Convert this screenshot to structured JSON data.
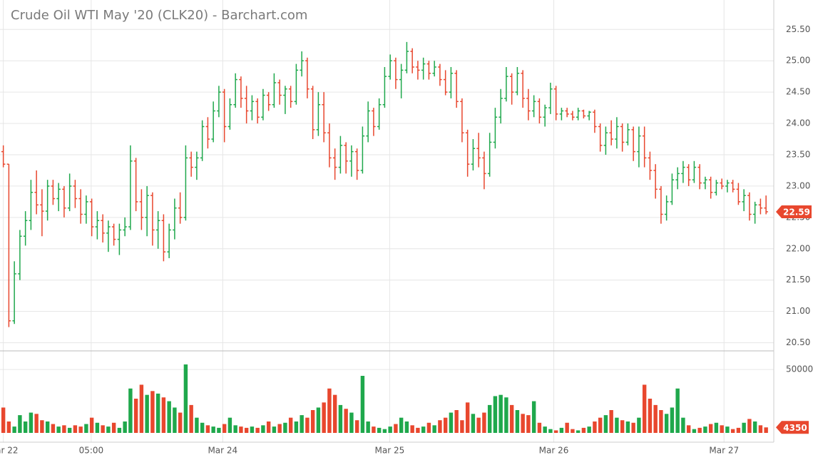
{
  "chart_data": {
    "type": "ohlc",
    "title": "Crude Oil WTI May '20 (CLK20) - Barchart.com",
    "up_color": "#1fa84c",
    "down_color": "#e8472e",
    "xlim": [
      -0.6,
      139.4
    ],
    "xticks": [
      {
        "value": 0,
        "label": "Mar 22"
      },
      {
        "value": 15.9,
        "label": "05:00"
      },
      {
        "value": 39.7,
        "label": "Mar 24"
      },
      {
        "value": 69.9,
        "label": "Mar 25"
      },
      {
        "value": 99.6,
        "label": "Mar 26"
      },
      {
        "value": 130.4,
        "label": "Mar 27"
      }
    ],
    "ylim": [
      20.37,
      25.97
    ],
    "yticks": [
      {
        "value": 20.5,
        "label": "20.50"
      },
      {
        "value": 21,
        "label": "21.00"
      },
      {
        "value": 21.5,
        "label": "21.50"
      },
      {
        "value": 22,
        "label": "22.00"
      },
      {
        "value": 22.5,
        "label": "22.50"
      },
      {
        "value": 23,
        "label": "23.00"
      },
      {
        "value": 23.5,
        "label": "23.50"
      },
      {
        "value": 24,
        "label": "24.00"
      },
      {
        "value": 24.5,
        "label": "24.50"
      },
      {
        "value": 25,
        "label": "25.00"
      },
      {
        "value": 25.5,
        "label": "25.50"
      }
    ],
    "volume_ylim": [
      0,
      63000
    ],
    "volume_yticks": [
      50000
    ],
    "grid": true,
    "open": [
      23.55,
      23.35,
      20.85,
      21.6,
      22.2,
      22.45,
      22.9,
      22.7,
      22.6,
      23.0,
      22.8,
      22.95,
      22.65,
      23.0,
      22.8,
      22.55,
      22.75,
      22.35,
      22.45,
      22.25,
      22.35,
      22.15,
      22.3,
      22.35,
      23.4,
      22.75,
      22.5,
      22.85,
      22.3,
      22.45,
      21.95,
      22.3,
      22.65,
      22.5,
      23.45,
      23.3,
      23.45,
      23.95,
      23.75,
      24.2,
      24.5,
      23.95,
      24.3,
      24.7,
      24.4,
      24.2,
      24.35,
      24.1,
      24.45,
      24.3,
      24.65,
      24.45,
      24.55,
      24.35,
      24.85,
      25.0,
      24.55,
      23.9,
      24.3,
      23.85,
      23.45,
      23.3,
      23.65,
      23.4,
      23.55,
      23.25,
      23.8,
      24.2,
      23.95,
      24.3,
      24.75,
      25.0,
      24.7,
      24.85,
      25.15,
      24.9,
      24.85,
      24.95,
      24.8,
      24.9,
      24.7,
      24.5,
      24.8,
      24.35,
      23.85,
      23.35,
      23.6,
      23.45,
      23.2,
      23.7,
      24.1,
      24.4,
      24.75,
      24.5,
      24.8,
      24.4,
      24.2,
      24.35,
      24.1,
      24.25,
      24.55,
      24.15,
      24.2,
      24.15,
      24.1,
      24.2,
      24.12,
      24.18,
      23.95,
      23.65,
      23.85,
      23.75,
      23.95,
      23.7,
      23.9,
      23.55,
      23.8,
      23.45,
      23.25,
      22.95,
      22.55,
      22.75,
      23.1,
      23.2,
      23.3,
      23.1,
      23.3,
      23.05,
      23.1,
      22.9,
      23.05,
      23.0,
      23.05,
      22.95,
      22.75,
      22.85,
      22.55,
      22.7,
      22.65
    ],
    "high": [
      23.65,
      23.35,
      21.8,
      22.3,
      22.6,
      23.1,
      23.25,
      22.95,
      23.1,
      23.1,
      23.05,
      23.0,
      23.2,
      23.1,
      22.95,
      22.85,
      22.8,
      22.6,
      22.55,
      22.45,
      22.4,
      22.4,
      22.5,
      23.65,
      23.45,
      22.95,
      23.0,
      22.9,
      22.6,
      22.55,
      22.4,
      22.8,
      22.9,
      23.65,
      23.55,
      23.55,
      24.05,
      24.1,
      24.35,
      24.6,
      24.55,
      24.4,
      24.8,
      24.75,
      24.6,
      24.45,
      24.4,
      24.55,
      24.5,
      24.8,
      24.7,
      24.6,
      24.6,
      24.95,
      25.15,
      25.05,
      24.6,
      24.5,
      24.5,
      24.0,
      23.6,
      23.8,
      23.7,
      23.65,
      23.6,
      23.95,
      24.35,
      24.25,
      24.4,
      24.9,
      25.1,
      25.05,
      24.95,
      25.3,
      25.2,
      25.0,
      25.05,
      25.0,
      25.0,
      24.95,
      24.85,
      24.9,
      24.85,
      24.4,
      23.9,
      23.75,
      23.85,
      23.55,
      23.85,
      24.25,
      24.55,
      24.9,
      24.8,
      24.9,
      24.85,
      24.55,
      24.45,
      24.4,
      24.3,
      24.65,
      24.6,
      24.25,
      24.25,
      24.2,
      24.25,
      24.22,
      24.2,
      24.22,
      24.0,
      23.95,
      24.05,
      24.1,
      24.0,
      24.0,
      23.95,
      23.95,
      23.95,
      23.55,
      23.35,
      23.0,
      22.85,
      23.2,
      23.3,
      23.4,
      23.35,
      23.4,
      23.35,
      23.15,
      23.15,
      23.1,
      23.12,
      23.1,
      23.1,
      23.05,
      22.95,
      22.9,
      22.75,
      22.8,
      22.85
    ],
    "low": [
      23.3,
      20.75,
      20.8,
      21.5,
      22.05,
      22.3,
      22.55,
      22.2,
      22.45,
      22.7,
      22.6,
      22.5,
      22.6,
      22.65,
      22.4,
      22.4,
      22.2,
      22.15,
      22.1,
      21.95,
      22.05,
      21.9,
      22.2,
      22.3,
      22.6,
      22.3,
      22.2,
      22.05,
      22.0,
      21.8,
      21.85,
      22.15,
      22.4,
      22.45,
      23.15,
      23.1,
      23.4,
      23.6,
      23.7,
      24.1,
      23.7,
      23.9,
      24.25,
      24.25,
      24.0,
      24.05,
      24.0,
      24.05,
      24.2,
      24.25,
      24.3,
      24.15,
      24.25,
      24.3,
      24.75,
      24.4,
      23.75,
      23.8,
      23.7,
      23.3,
      23.1,
      23.2,
      23.2,
      23.15,
      23.1,
      23.2,
      23.7,
      23.8,
      23.9,
      24.25,
      24.7,
      24.55,
      24.4,
      24.8,
      24.8,
      24.7,
      24.7,
      24.7,
      24.75,
      24.6,
      24.45,
      24.4,
      24.25,
      23.7,
      23.15,
      23.25,
      23.3,
      22.95,
      23.15,
      23.6,
      24.0,
      24.35,
      24.3,
      24.45,
      24.25,
      24.05,
      24.1,
      24.0,
      23.95,
      24.15,
      24.05,
      24.05,
      24.1,
      24.05,
      24.05,
      24.08,
      24.05,
      23.85,
      23.55,
      23.5,
      23.65,
      23.6,
      23.55,
      23.65,
      23.4,
      23.3,
      23.3,
      23.1,
      22.8,
      22.4,
      22.45,
      22.7,
      22.95,
      23.05,
      23.0,
      23.05,
      22.95,
      22.95,
      22.8,
      22.85,
      22.95,
      22.9,
      22.9,
      22.7,
      22.6,
      22.45,
      22.4,
      22.55,
      22.55
    ],
    "close": [
      23.35,
      20.85,
      21.6,
      22.2,
      22.45,
      22.9,
      22.7,
      22.6,
      23.0,
      22.8,
      22.95,
      22.65,
      23.0,
      22.8,
      22.55,
      22.75,
      22.35,
      22.45,
      22.25,
      22.35,
      22.15,
      22.3,
      22.35,
      23.4,
      22.75,
      22.5,
      22.85,
      22.3,
      22.45,
      21.95,
      22.3,
      22.65,
      22.5,
      23.45,
      23.3,
      23.45,
      23.95,
      23.75,
      24.2,
      24.5,
      23.95,
      24.3,
      24.7,
      24.4,
      24.2,
      24.35,
      24.1,
      24.45,
      24.3,
      24.65,
      24.45,
      24.55,
      24.35,
      24.85,
      25.0,
      24.55,
      23.9,
      24.3,
      23.85,
      23.45,
      23.3,
      23.65,
      23.4,
      23.55,
      23.25,
      23.8,
      24.2,
      23.95,
      24.3,
      24.75,
      25.0,
      24.7,
      24.85,
      25.15,
      24.9,
      24.85,
      24.95,
      24.8,
      24.9,
      24.7,
      24.5,
      24.8,
      24.35,
      23.85,
      23.35,
      23.6,
      23.45,
      23.2,
      23.7,
      24.1,
      24.4,
      24.75,
      24.5,
      24.8,
      24.4,
      24.2,
      24.35,
      24.1,
      24.25,
      24.55,
      24.15,
      24.2,
      24.15,
      24.1,
      24.2,
      24.12,
      24.18,
      23.95,
      23.65,
      23.85,
      23.75,
      23.95,
      23.7,
      23.9,
      23.55,
      23.8,
      23.45,
      23.25,
      22.95,
      22.55,
      22.75,
      23.1,
      23.2,
      23.3,
      23.1,
      23.3,
      23.05,
      23.1,
      22.9,
      23.05,
      23.0,
      23.05,
      22.95,
      22.75,
      22.85,
      22.55,
      22.7,
      22.65,
      22.59
    ],
    "volume": [
      20000,
      9000,
      5000,
      14000,
      9000,
      16000,
      15000,
      10000,
      9000,
      7000,
      5000,
      6000,
      4000,
      6000,
      5000,
      7000,
      12000,
      8000,
      6000,
      5000,
      8000,
      4000,
      9000,
      35000,
      27000,
      38000,
      30000,
      33000,
      31000,
      28000,
      25000,
      20000,
      16000,
      54000,
      22000,
      12000,
      8000,
      6000,
      5000,
      4000,
      7000,
      12000,
      6000,
      5000,
      4000,
      5000,
      4000,
      6000,
      9000,
      5000,
      7000,
      8000,
      12000,
      9000,
      14000,
      12000,
      18000,
      20000,
      24000,
      35000,
      30000,
      22000,
      19000,
      16000,
      10000,
      45000,
      9000,
      5000,
      4000,
      3000,
      5000,
      7000,
      12000,
      9000,
      6000,
      4000,
      5000,
      8000,
      6000,
      10000,
      12000,
      16000,
      18000,
      10000,
      24000,
      15000,
      12000,
      16000,
      22000,
      29000,
      30000,
      28000,
      22000,
      18000,
      15000,
      14000,
      25000,
      8000,
      5000,
      3000,
      2000,
      4000,
      8000,
      3000,
      2000,
      4000,
      5000,
      9000,
      12000,
      14000,
      18000,
      12000,
      10000,
      9000,
      8000,
      12000,
      38000,
      27000,
      22000,
      18000,
      15000,
      20000,
      35000,
      12000,
      6000,
      3000,
      4000,
      5000,
      7000,
      8000,
      6000,
      5000,
      3000,
      4000,
      8000,
      11000,
      9000,
      6000,
      4350
    ]
  }
}
